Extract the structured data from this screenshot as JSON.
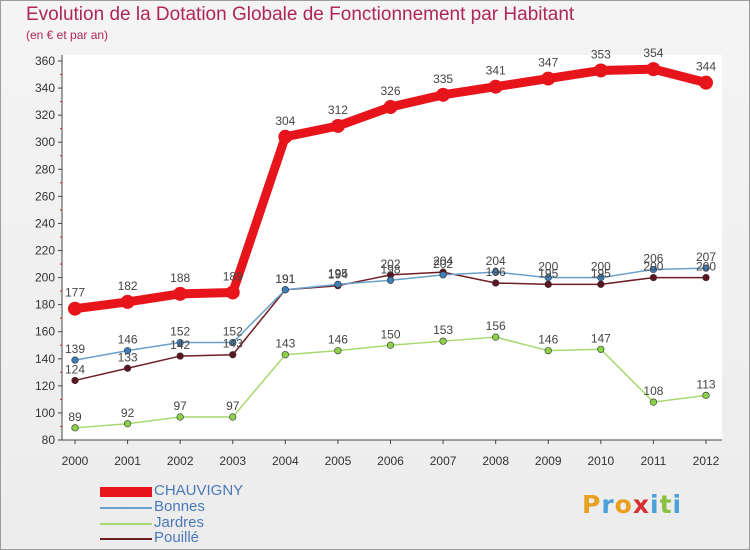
{
  "chart_data": {
    "type": "line",
    "title": "Evolution de la Dotation Globale de Fonctionnement par Habitant",
    "subtitle": "(en € et par an)",
    "categories": [
      "2000",
      "2001",
      "2002",
      "2003",
      "2004",
      "2005",
      "2006",
      "2007",
      "2008",
      "2009",
      "2010",
      "2011",
      "2012"
    ],
    "ylim": [
      80,
      360
    ],
    "yticks": [
      80,
      100,
      120,
      140,
      160,
      180,
      200,
      220,
      240,
      260,
      280,
      300,
      320,
      340,
      360
    ],
    "grid": false,
    "series": [
      {
        "name": "CHAUVIGNY",
        "color": "#e8141b",
        "marker": "#e8141b",
        "emphasis": true,
        "values": [
          177,
          182,
          188,
          189,
          304,
          312,
          326,
          335,
          341,
          347,
          353,
          354,
          344
        ]
      },
      {
        "name": "Bonnes",
        "color": "#6aa0cc",
        "marker": "#3f7fb8",
        "emphasis": false,
        "values": [
          139,
          146,
          152,
          152,
          191,
          195,
          198,
          202,
          204,
          200,
          200,
          206,
          207
        ]
      },
      {
        "name": "Jardres",
        "color": "#a8d870",
        "marker": "#8cd04a",
        "emphasis": false,
        "values": [
          89,
          92,
          97,
          97,
          143,
          146,
          150,
          153,
          156,
          146,
          147,
          108,
          113
        ]
      },
      {
        "name": "Pouillé",
        "color": "#6e1f25",
        "marker": "#5c1420",
        "emphasis": false,
        "values": [
          124,
          133,
          142,
          143,
          191,
          194,
          202,
          204,
          196,
          195,
          195,
          200,
          200
        ]
      }
    ]
  },
  "legend": {
    "items": [
      {
        "label": "CHAUVIGNY",
        "color": "#e8141b"
      },
      {
        "label": "Bonnes",
        "color": "#6aa0cc"
      },
      {
        "label": "Jardres",
        "color": "#a8d870"
      },
      {
        "label": "Pouillé",
        "color": "#6e1f25"
      }
    ]
  },
  "logo": {
    "text": "Proxiti",
    "letter_colors": [
      "#e8a020",
      "#4aa0d8",
      "#e8a020",
      "#d83030",
      "#4aa0d8",
      "#8cc040",
      "#4aa0d8"
    ]
  }
}
